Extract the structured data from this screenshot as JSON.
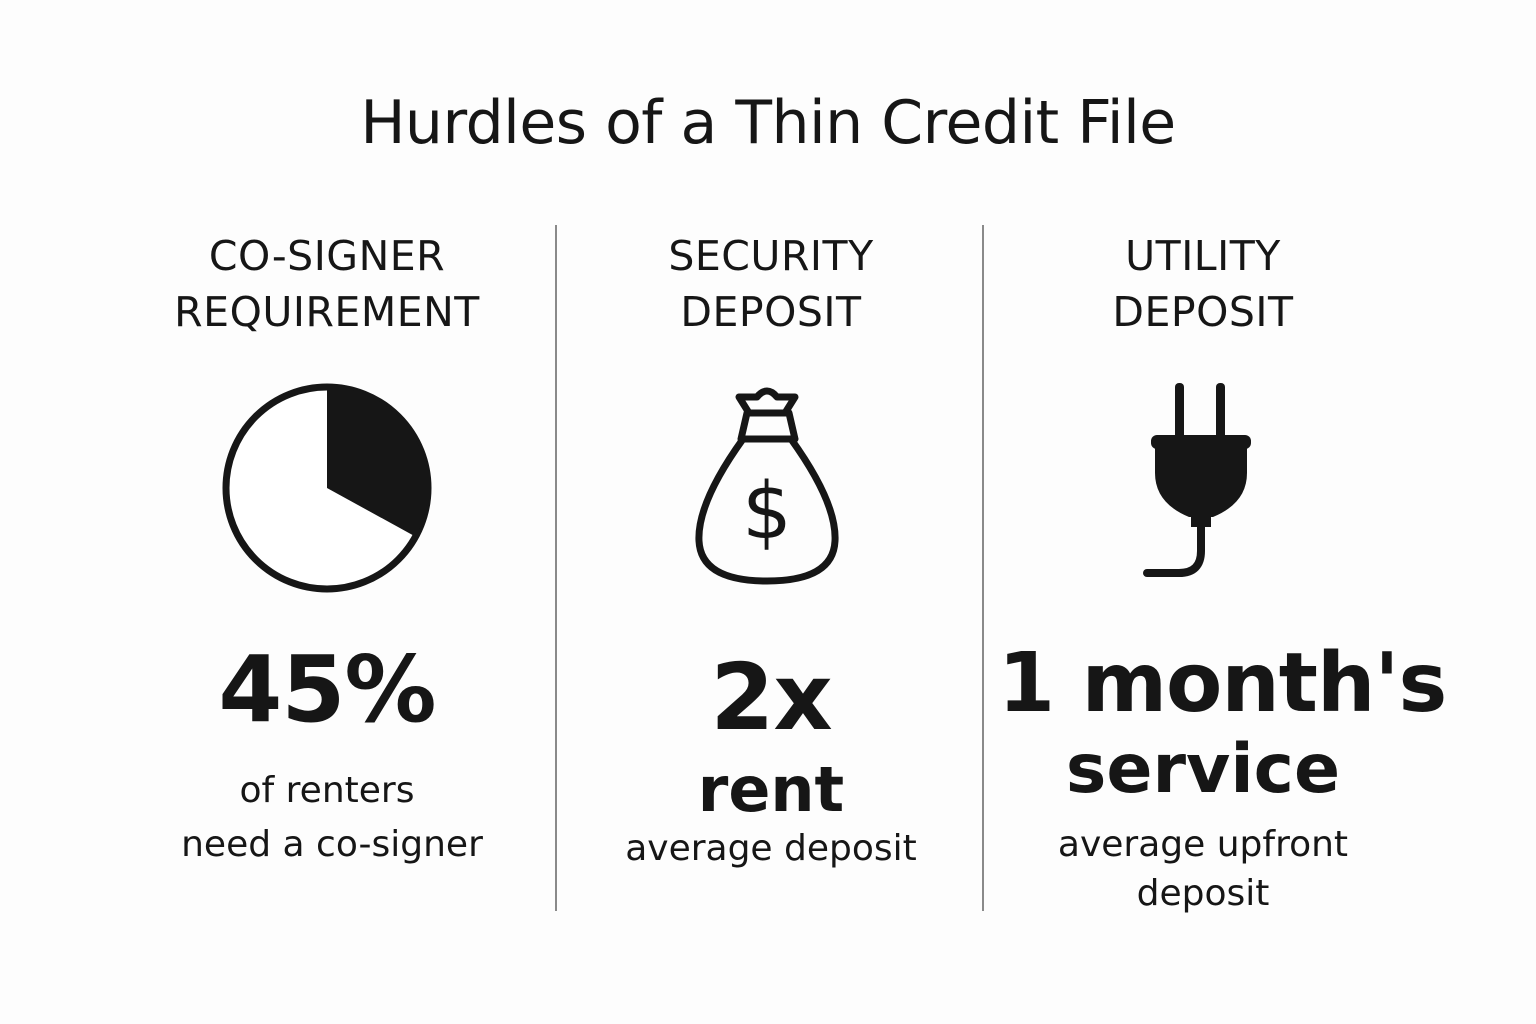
{
  "title": "Hurdles of a Thin Credit File",
  "columns": [
    {
      "heading_line1": "CO-SIGNER",
      "heading_line2": "REQUIREMENT",
      "icon": "pie-chart-icon",
      "pie_fraction_shown": 0.33,
      "stat": "45%",
      "caption_line1": "of renters",
      "caption_line2": "need a co-signer"
    },
    {
      "heading_line1": "SECURITY",
      "heading_line2": "DEPOSIT",
      "icon": "money-bag-icon",
      "stat": "2x",
      "stat_line2": "rent",
      "caption_line1": "average deposit"
    },
    {
      "heading_line1": "UTILITY",
      "heading_line2": "DEPOSIT",
      "icon": "power-plug-icon",
      "stat": "1 month's",
      "stat_line2": "service",
      "caption_line1": "average upfront",
      "caption_line2": "deposit"
    }
  ]
}
